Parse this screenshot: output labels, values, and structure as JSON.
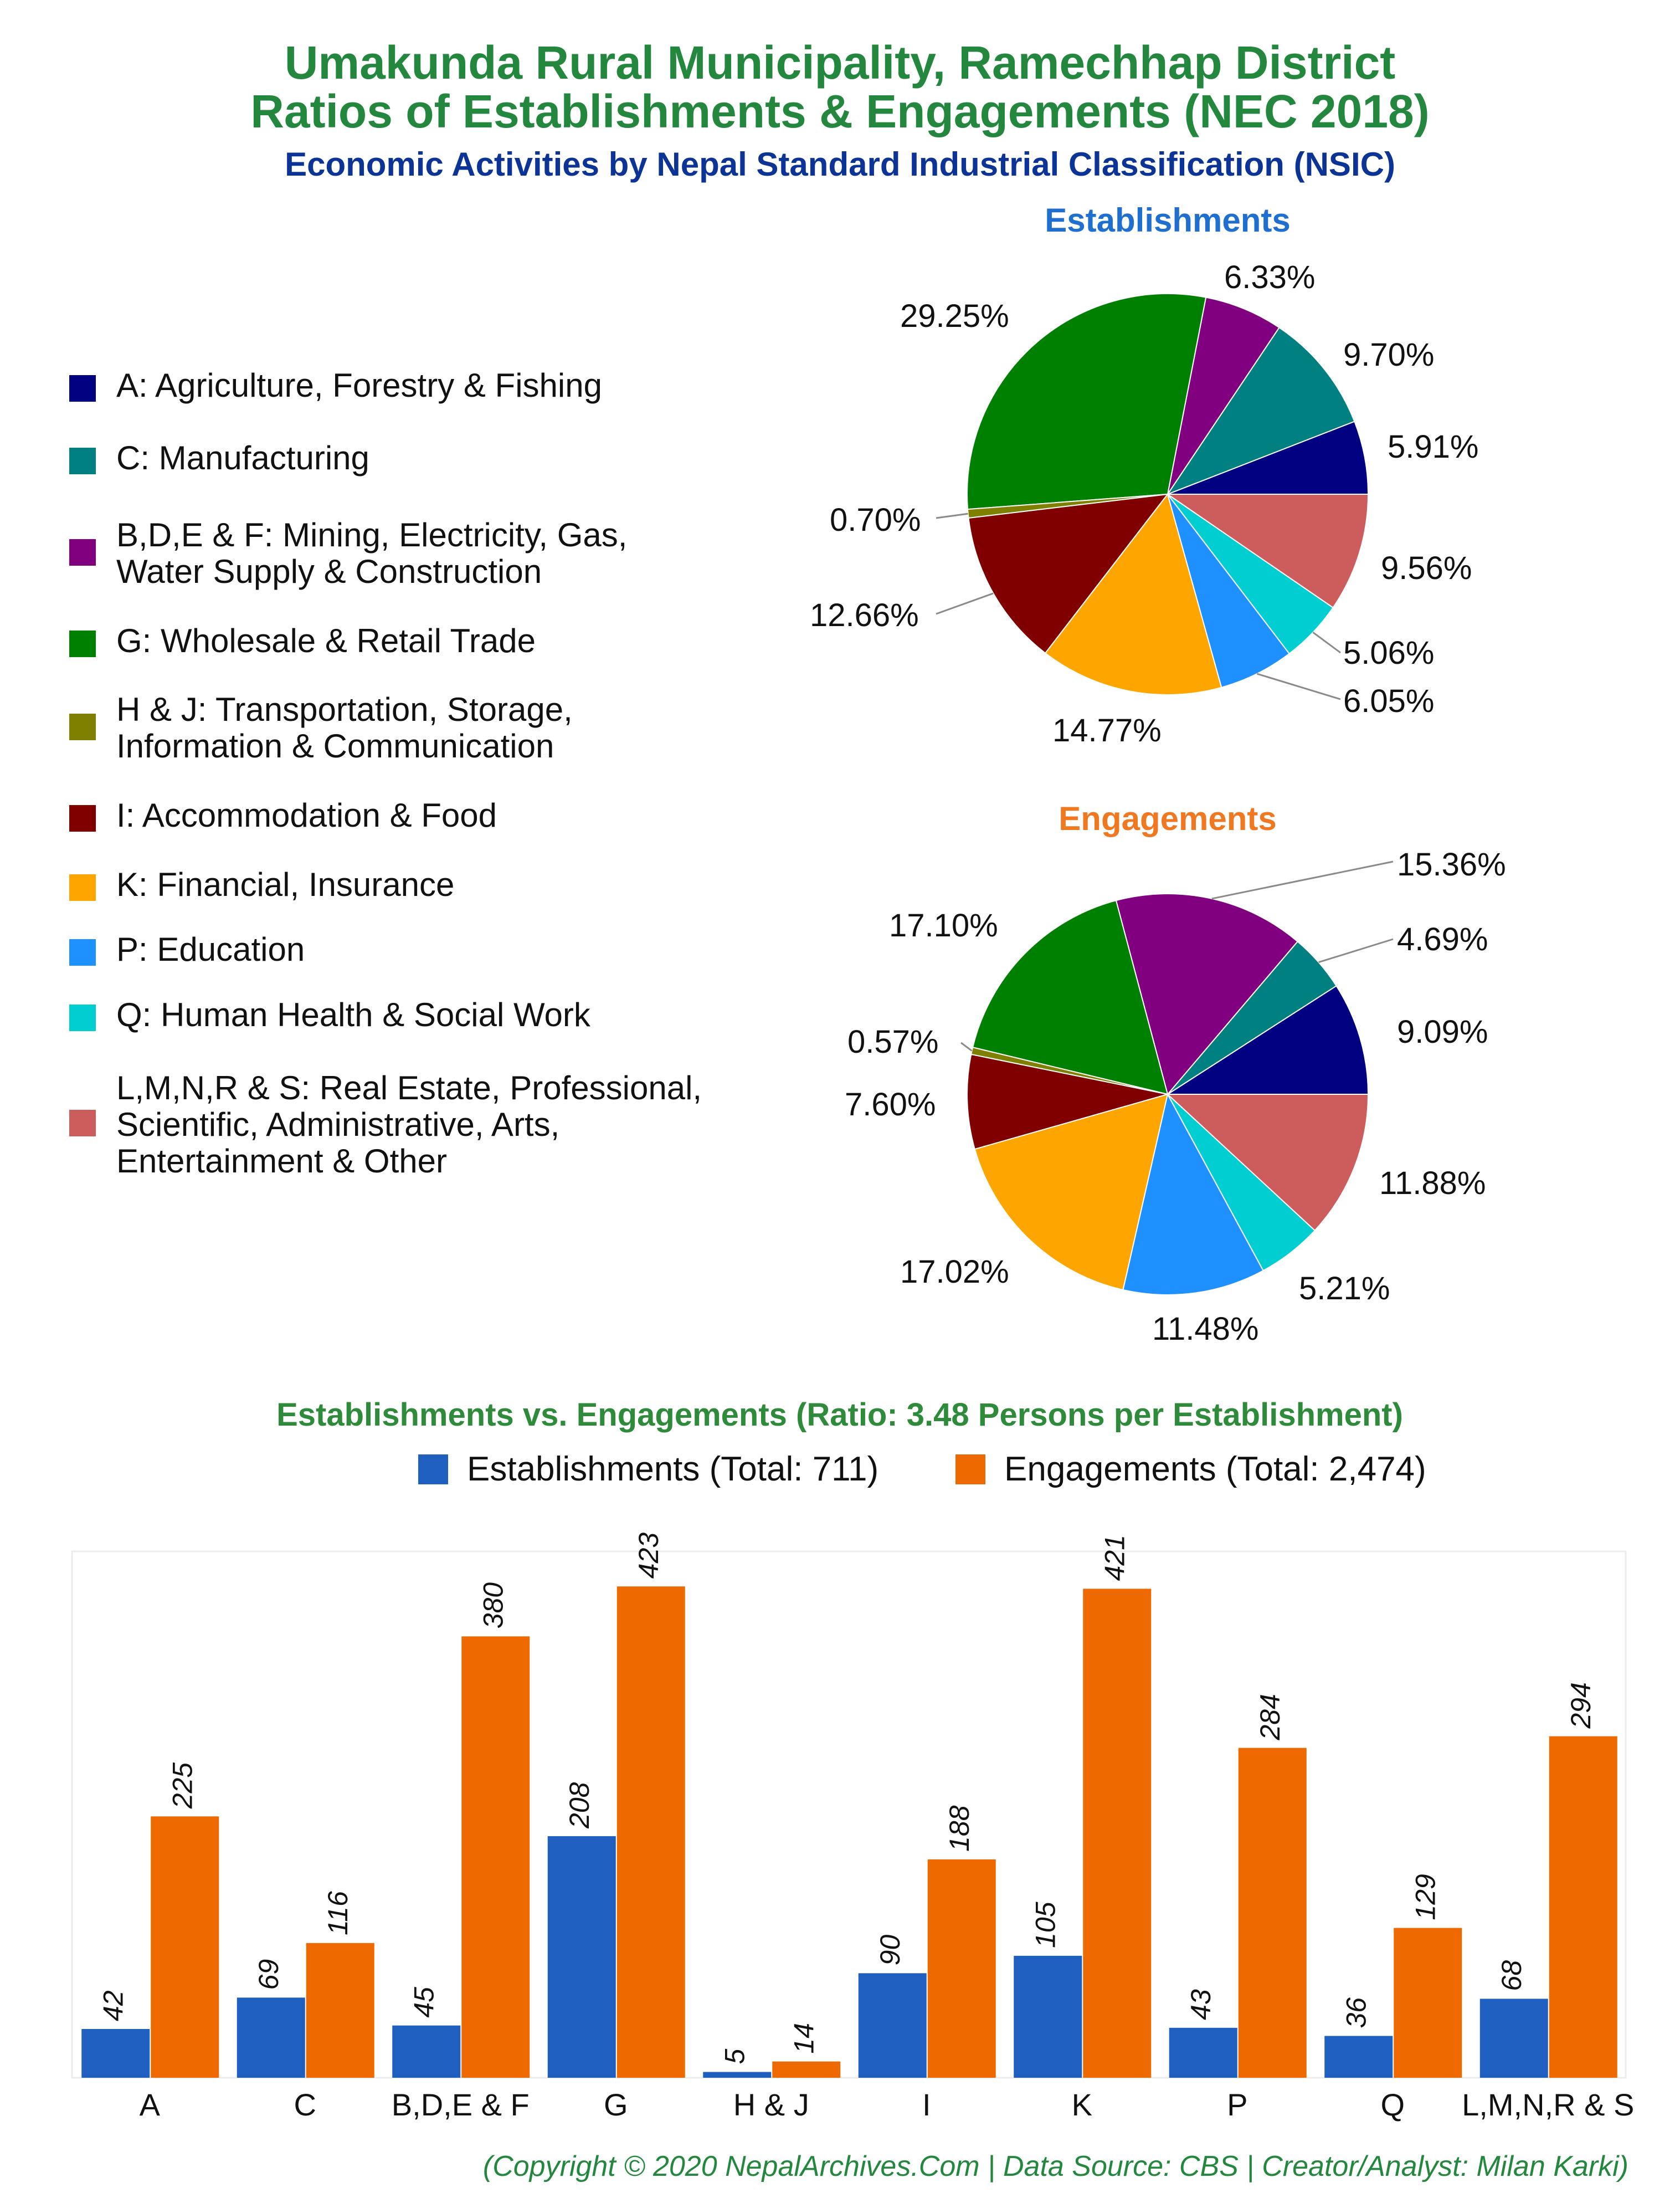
{
  "titles": {
    "line1": "Umakunda Rural Municipality, Ramechhap District",
    "line2": "Ratios of Establishments & Engagements (NEC 2018)",
    "subtitle": "Economic Activities by Nepal Standard Industrial Classification (NSIC)"
  },
  "legend": [
    {
      "label": "A: Agriculture, Forestry & Fishing",
      "color": "#000080"
    },
    {
      "label": "C: Manufacturing",
      "color": "#008080"
    },
    {
      "label": "B,D,E & F: Mining, Electricity, Gas,\nWater Supply & Construction",
      "color": "#800080"
    },
    {
      "label": "G: Wholesale & Retail Trade",
      "color": "#008000"
    },
    {
      "label": "H & J: Transportation, Storage,\nInformation & Communication",
      "color": "#808000"
    },
    {
      "label": "I: Accommodation & Food",
      "color": "#800000"
    },
    {
      "label": "K: Financial, Insurance",
      "color": "#ffa500"
    },
    {
      "label": "P: Education",
      "color": "#1e90ff"
    },
    {
      "label": "Q: Human Health & Social Work",
      "color": "#00ced1"
    },
    {
      "label": "L,M,N,R & S: Real Estate, Professional,\nScientific, Administrative, Arts,\nEntertainment & Other",
      "color": "#cd5c5c"
    }
  ],
  "footer": "(Copyright © 2020 NepalArchives.Com | Data Source: CBS | Creator/Analyst: Milan Karki)",
  "chart_data": [
    {
      "type": "pie",
      "title": "Establishments",
      "title_color": "#1f6fd0",
      "categories": [
        "A",
        "C",
        "B,D,E & F",
        "G",
        "H & J",
        "I",
        "K",
        "P",
        "Q",
        "L,M,N,R & S"
      ],
      "values": [
        5.91,
        9.7,
        6.33,
        29.25,
        0.7,
        12.66,
        14.77,
        6.05,
        5.06,
        9.56
      ],
      "labels": [
        "5.91%",
        "9.70%",
        "6.33%",
        "29.25%",
        "0.70%",
        "12.66%",
        "14.77%",
        "6.05%",
        "5.06%",
        "9.56%"
      ]
    },
    {
      "type": "pie",
      "title": "Engagements",
      "title_color": "#f07820",
      "categories": [
        "A",
        "C",
        "B,D,E & F",
        "G",
        "H & J",
        "I",
        "K",
        "P",
        "Q",
        "L,M,N,R & S"
      ],
      "values": [
        9.09,
        4.69,
        15.36,
        17.1,
        0.57,
        7.6,
        17.02,
        11.48,
        5.21,
        11.88
      ],
      "labels": [
        "9.09%",
        "4.69%",
        "15.36%",
        "17.10%",
        "0.57%",
        "7.60%",
        "17.02%",
        "11.48%",
        "5.21%",
        "11.88%"
      ]
    },
    {
      "type": "bar",
      "title": "Establishments vs. Engagements (Ratio: 3.48 Persons per Establishment)",
      "title_color": "#2e8b3a",
      "categories": [
        "A",
        "C",
        "B,D,E & F",
        "G",
        "H & J",
        "I",
        "K",
        "P",
        "Q",
        "L,M,N,R & S"
      ],
      "series": [
        {
          "name": "Establishments (Total: 711)",
          "color": "#1f5fbf",
          "values": [
            42,
            69,
            45,
            208,
            5,
            90,
            105,
            43,
            36,
            68
          ]
        },
        {
          "name": "Engagements (Total: 2,474)",
          "color": "#ee6a00",
          "values": [
            225,
            116,
            380,
            423,
            14,
            188,
            421,
            284,
            129,
            294
          ]
        }
      ],
      "ylim": [
        0,
        445
      ],
      "grid": false,
      "legend_position": "top"
    }
  ]
}
